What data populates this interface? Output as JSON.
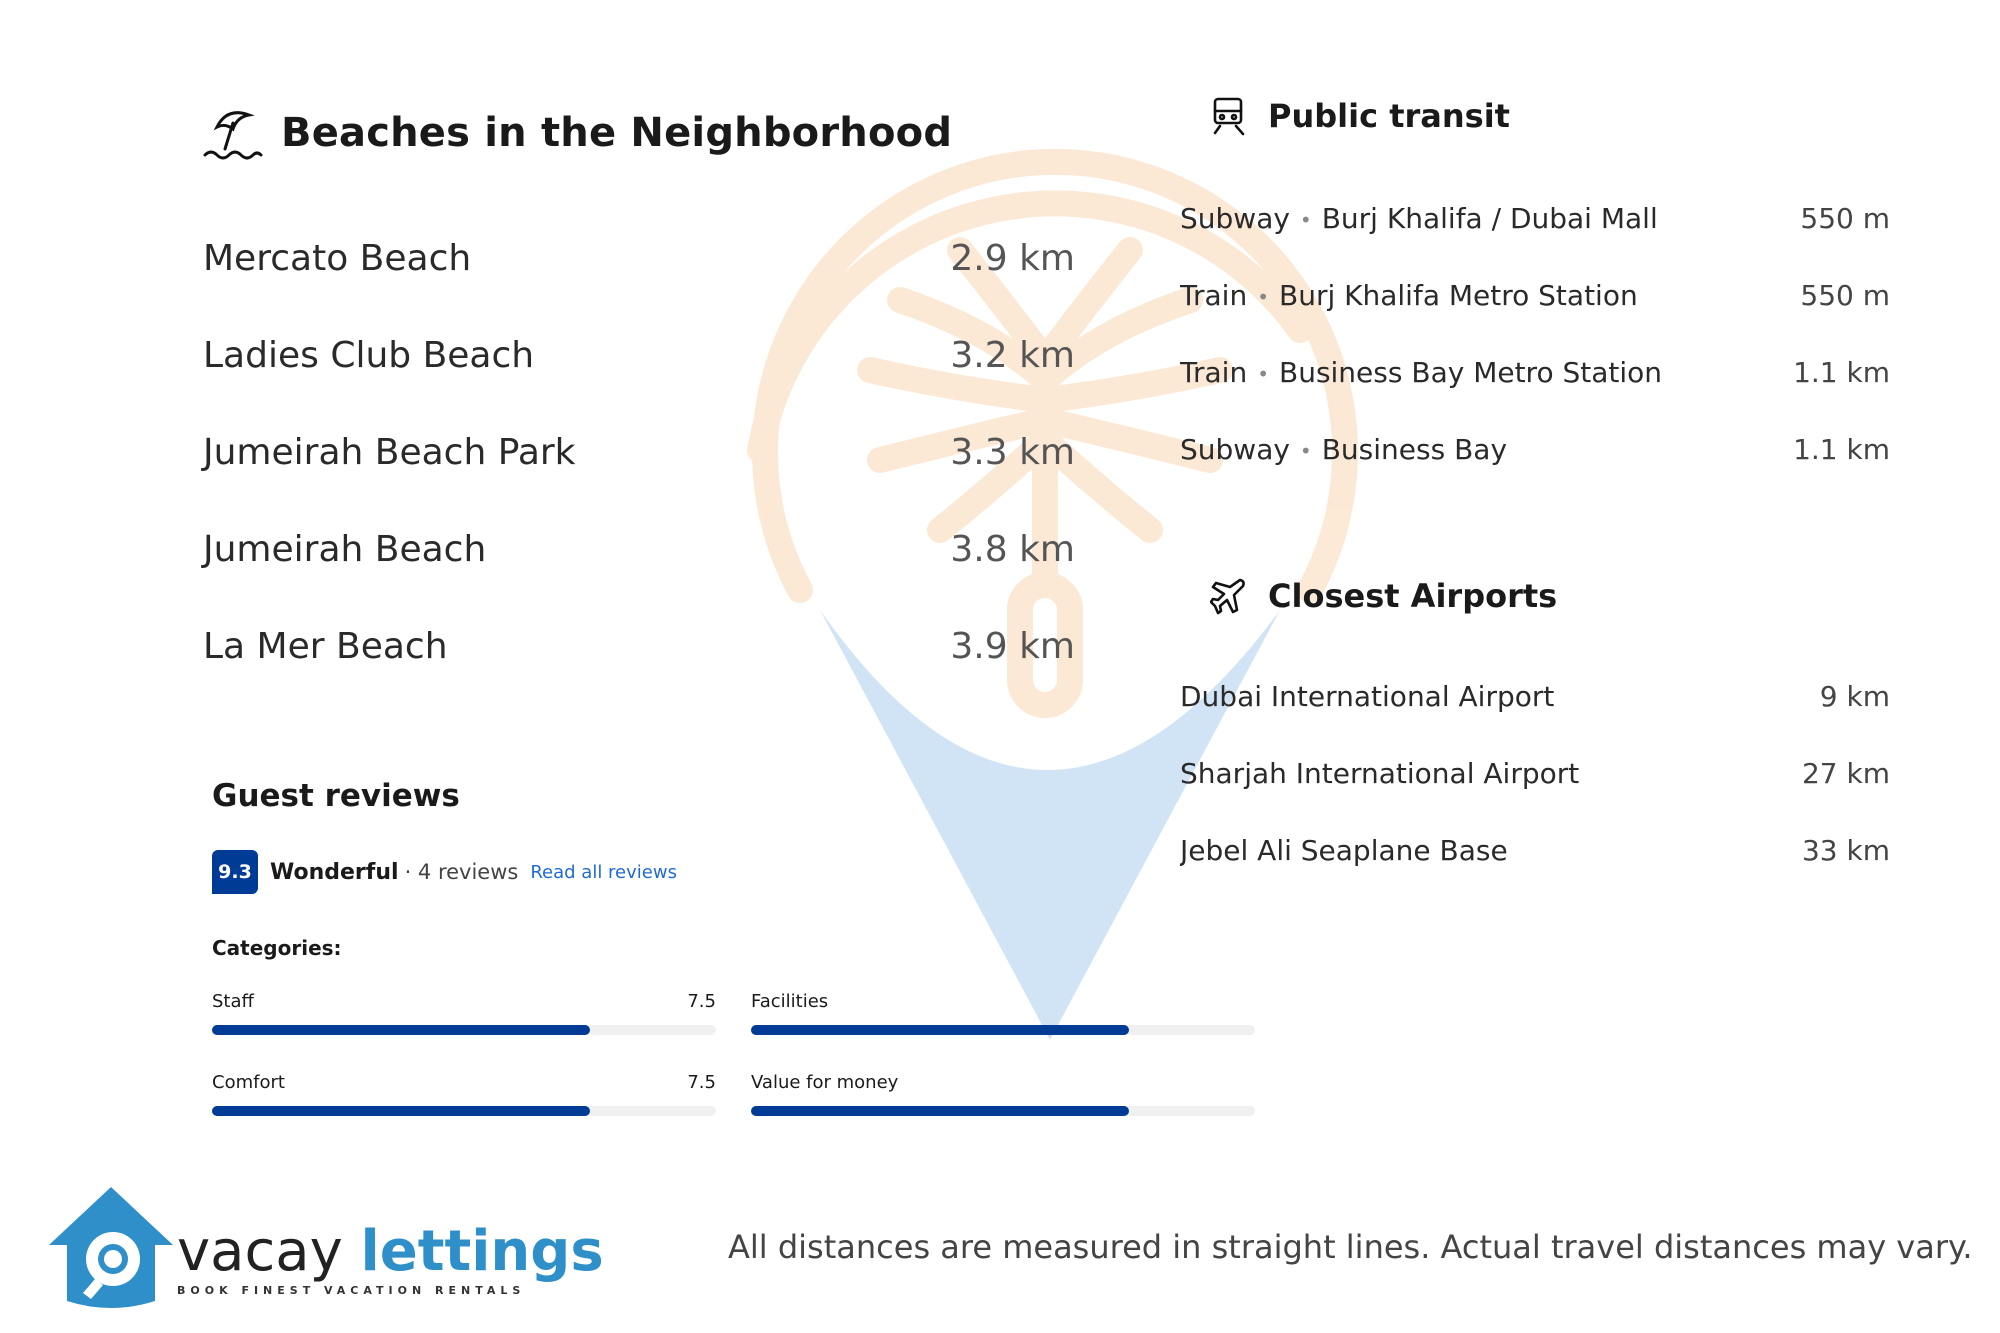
{
  "beaches": {
    "title": "Beaches in the Neighborhood",
    "items": [
      {
        "name": "Mercato Beach",
        "distance": "2.9 km"
      },
      {
        "name": "Ladies Club Beach",
        "distance": "3.2 km"
      },
      {
        "name": "Jumeirah Beach Park",
        "distance": "3.3 km"
      },
      {
        "name": "Jumeirah Beach",
        "distance": "3.8 km"
      },
      {
        "name": "La Mer Beach",
        "distance": "3.9 km"
      }
    ]
  },
  "transit": {
    "title": "Public transit",
    "items": [
      {
        "mode": "Subway",
        "name": "Burj Khalifa / Dubai Mall",
        "distance": "550 m"
      },
      {
        "mode": "Train",
        "name": "Burj Khalifa Metro Station",
        "distance": "550 m"
      },
      {
        "mode": "Train",
        "name": "Business Bay Metro Station",
        "distance": "1.1 km"
      },
      {
        "mode": "Subway",
        "name": "Business Bay",
        "distance": "1.1 km"
      }
    ]
  },
  "airports": {
    "title": "Closest Airports",
    "items": [
      {
        "name": "Dubai International Airport",
        "distance": "9 km"
      },
      {
        "name": "Sharjah International Airport",
        "distance": "27 km"
      },
      {
        "name": "Jebel Ali Seaplane Base",
        "distance": "33 km"
      }
    ]
  },
  "reviews": {
    "title": "Guest reviews",
    "score": "9.3",
    "rating_word": "Wonderful",
    "count_text": "· 4 reviews",
    "read_all": "Read all reviews",
    "categories_title": "Categories:",
    "categories": [
      {
        "name": "Staff",
        "score": "7.5",
        "fill": 0.75
      },
      {
        "name": "Facilities",
        "score": "",
        "fill": 0.75
      },
      {
        "name": "Comfort",
        "score": "7.5",
        "fill": 0.75
      },
      {
        "name": "Value for money",
        "score": "",
        "fill": 0.75
      }
    ]
  },
  "footer": {
    "logo_word1": "vacay",
    "logo_word2": "lettings",
    "tagline": "BOOK FINEST VACATION RENTALS",
    "disclaimer": "All distances are measured in straight lines. Actual travel distances may vary."
  },
  "colors": {
    "brand_blue": "#003b95",
    "logo_blue": "#2f8fc8",
    "link_blue": "#1f6bd6"
  }
}
